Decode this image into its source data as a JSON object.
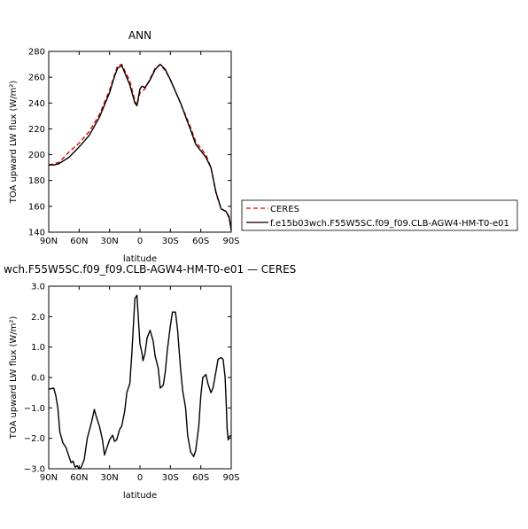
{
  "chart_data": [
    {
      "type": "line",
      "title": "ANN",
      "xlabel": "latitude",
      "ylabel": "TOA upward LW flux (W/m²)",
      "xlim": [
        90,
        -90
      ],
      "ylim": [
        140,
        280
      ],
      "x_ticks": [
        {
          "value": 90,
          "label": "90N"
        },
        {
          "value": 60,
          "label": "60N"
        },
        {
          "value": 30,
          "label": "30N"
        },
        {
          "value": 0,
          "label": "0"
        },
        {
          "value": -30,
          "label": "30S"
        },
        {
          "value": -60,
          "label": "60S"
        },
        {
          "value": -90,
          "label": "90S"
        }
      ],
      "y_ticks": [
        140,
        160,
        180,
        200,
        220,
        240,
        260,
        280
      ],
      "legend": {
        "placement": "right"
      },
      "series": [
        {
          "name": "CERES",
          "color": "#e00000",
          "dash": true,
          "x": [
            90,
            80,
            70,
            60,
            50,
            40,
            30,
            25,
            22,
            18,
            10,
            5,
            3,
            0,
            -5,
            -10,
            -15,
            -20,
            -25,
            -30,
            -40,
            -50,
            -55,
            -60,
            -65,
            -70,
            -75,
            -80,
            -85,
            -88,
            -90
          ],
          "y": [
            192,
            194,
            202,
            209,
            218,
            231,
            250,
            262,
            269,
            270,
            257,
            242,
            238,
            248,
            251,
            259,
            267,
            270,
            265,
            258,
            240,
            221,
            210,
            205,
            200,
            190,
            170,
            158,
            156,
            152,
            141
          ]
        },
        {
          "name": "f.e15b03wch.F55W5SC.f09_f09.CLB-AGW4-HM-T0-e01",
          "color": "#000000",
          "dash": false,
          "x": [
            90,
            85,
            80,
            70,
            60,
            50,
            40,
            30,
            25,
            22,
            18,
            10,
            5,
            3,
            0,
            -2,
            -5,
            -10,
            -15,
            -20,
            -25,
            -30,
            -40,
            -50,
            -55,
            -60,
            -65,
            -70,
            -75,
            -80,
            -85,
            -88,
            -90
          ],
          "y": [
            192,
            192,
            193,
            198,
            206,
            215,
            229,
            248,
            261,
            267,
            269,
            254,
            240,
            238,
            251,
            253,
            252,
            258,
            266,
            270,
            266,
            258,
            240,
            219,
            208,
            203,
            198,
            190,
            171,
            158,
            156,
            151,
            142
          ]
        }
      ]
    },
    {
      "type": "line",
      "title": "wch.F55W5SC.f09_f09.CLB-AGW4-HM-T0-e01 — CERES",
      "xlabel": "latitude",
      "ylabel": "TOA upward LW flux (W/m²)",
      "xlim": [
        90,
        -90
      ],
      "ylim": [
        -3.0,
        3.0
      ],
      "x_ticks": [
        {
          "value": 90,
          "label": "90N"
        },
        {
          "value": 60,
          "label": "60N"
        },
        {
          "value": 30,
          "label": "30N"
        },
        {
          "value": 0,
          "label": "0"
        },
        {
          "value": -30,
          "label": "30S"
        },
        {
          "value": -60,
          "label": "60S"
        },
        {
          "value": -90,
          "label": "90S"
        }
      ],
      "y_ticks": [
        {
          "value": -3,
          "label": "−3.0"
        },
        {
          "value": -2,
          "label": "−2.0"
        },
        {
          "value": -1,
          "label": "−1.0"
        },
        {
          "value": 0,
          "label": "0.0"
        },
        {
          "value": 1,
          "label": "1.0"
        },
        {
          "value": 2,
          "label": "2.0"
        },
        {
          "value": 3,
          "label": "3.0"
        }
      ],
      "series": [
        {
          "color": "#000000",
          "x": [
            90,
            85,
            83,
            81,
            79,
            76,
            73,
            71,
            68,
            66,
            64,
            62,
            60,
            58,
            55,
            52,
            48,
            45,
            43,
            40,
            37,
            35,
            32,
            30,
            27,
            25,
            23,
            20,
            18,
            15,
            13,
            10,
            8,
            5,
            3,
            0,
            -2,
            -3,
            -5,
            -7,
            -10,
            -13,
            -15,
            -18,
            -20,
            -23,
            -25,
            -27,
            -30,
            -32,
            -35,
            -37,
            -40,
            -42,
            -45,
            -47,
            -50,
            -53,
            -55,
            -58,
            -60,
            -62,
            -65,
            -67,
            -70,
            -72,
            -75,
            -77,
            -80,
            -82,
            -84,
            -85,
            -86,
            -87,
            -88,
            -90
          ],
          "y": [
            -0.38,
            -0.35,
            -0.6,
            -1.0,
            -1.8,
            -2.15,
            -2.3,
            -2.5,
            -2.8,
            -2.75,
            -2.95,
            -2.9,
            -3.0,
            -2.95,
            -2.7,
            -2.0,
            -1.5,
            -1.05,
            -1.3,
            -1.6,
            -2.05,
            -2.55,
            -2.25,
            -2.05,
            -1.9,
            -2.1,
            -2.05,
            -1.7,
            -1.6,
            -1.1,
            -0.5,
            -0.2,
            0.8,
            2.6,
            2.7,
            1.1,
            0.8,
            0.55,
            0.8,
            1.3,
            1.55,
            1.2,
            0.7,
            0.3,
            -0.35,
            -0.25,
            0.2,
            0.9,
            1.7,
            2.15,
            2.15,
            1.6,
            0.3,
            -0.4,
            -1.0,
            -1.9,
            -2.45,
            -2.6,
            -2.4,
            -1.6,
            -0.6,
            0.0,
            0.1,
            -0.2,
            -0.5,
            -0.35,
            0.2,
            0.6,
            0.65,
            0.6,
            0.0,
            -0.8,
            -1.7,
            -2.05,
            -1.95,
            -1.9
          ]
        }
      ]
    }
  ]
}
